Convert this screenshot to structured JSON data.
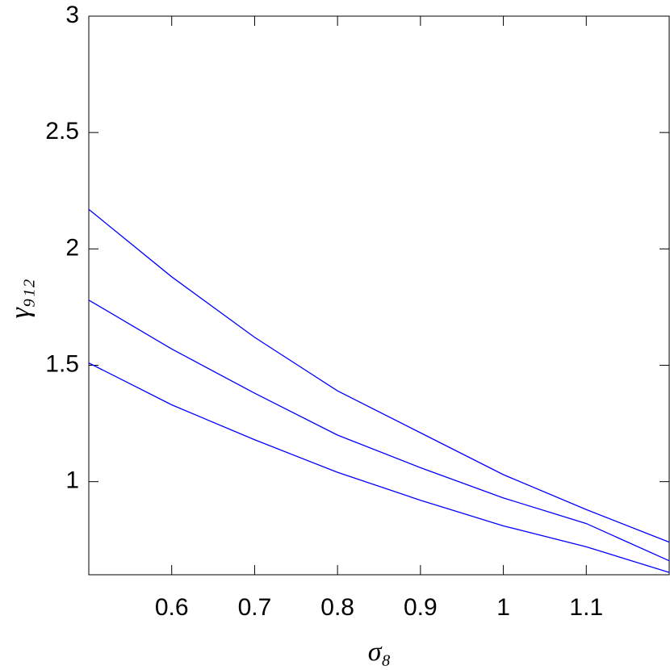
{
  "chart_data": {
    "type": "line",
    "x": [
      0.5,
      0.6,
      0.7,
      0.8,
      0.9,
      1.0,
      1.1,
      1.2
    ],
    "series": [
      {
        "color": "#0000ff",
        "values": [
          2.17,
          1.88,
          1.62,
          1.39,
          1.21,
          1.03,
          0.88,
          0.74
        ]
      },
      {
        "color": "#0000ff",
        "values": [
          1.78,
          1.57,
          1.38,
          1.2,
          1.06,
          0.93,
          0.82,
          0.66
        ]
      },
      {
        "color": "#0000ff",
        "values": [
          1.51,
          1.33,
          1.18,
          1.04,
          0.92,
          0.81,
          0.72,
          0.61
        ]
      }
    ],
    "xlabel": "σ₈",
    "ylabel": "γ₉₁₂",
    "xlim": [
      0.5,
      1.2
    ],
    "ylim": [
      0.6,
      3
    ],
    "xticks": [
      0.6,
      0.7,
      0.8,
      0.9,
      1,
      1.1
    ],
    "yticks": [
      1,
      1.5,
      2,
      2.5,
      3
    ],
    "grid": false
  }
}
